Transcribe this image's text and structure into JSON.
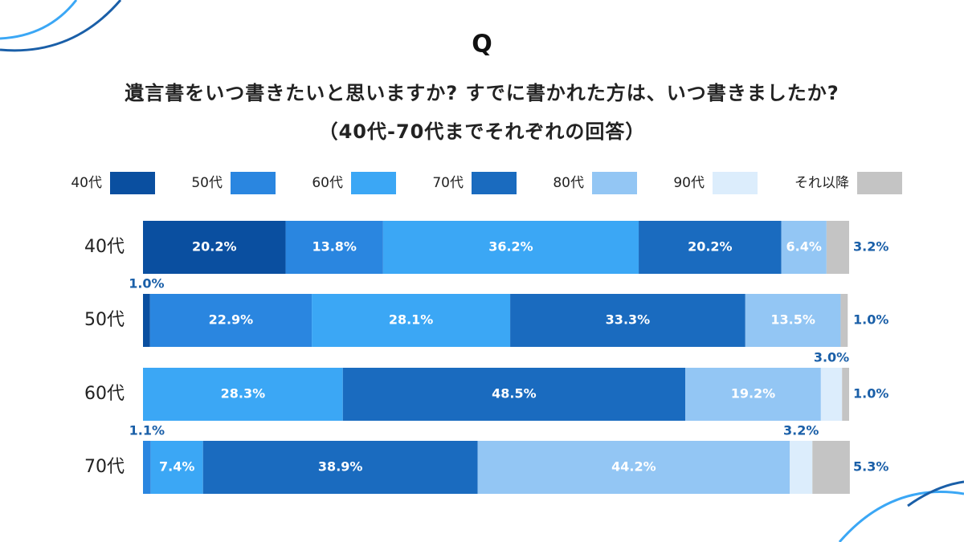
{
  "chart_data": {
    "type": "stacked-bar",
    "logo": "Q",
    "title": "遺言書をいつ書きたいと思いますか? すでに書かれた方は、いつ書きましたか?",
    "subtitle": "（40代-70代までそれぞれの回答）",
    "categories": [
      "40代",
      "50代",
      "60代",
      "70代"
    ],
    "xlim": [
      0,
      100
    ],
    "series": [
      {
        "name": "40代",
        "color": "#0a4fa0",
        "values": [
          20.2,
          1.0,
          null,
          null
        ],
        "value_labels": [
          "20.2%",
          "1.0%",
          null,
          null
        ]
      },
      {
        "name": "50代",
        "color": "#2a86e0",
        "values": [
          13.8,
          22.9,
          null,
          1.1
        ],
        "value_labels": [
          "13.8%",
          "22.9%",
          null,
          "1.1%"
        ]
      },
      {
        "name": "60代",
        "color": "#3ba7f5",
        "values": [
          36.2,
          28.1,
          28.3,
          7.4
        ],
        "value_labels": [
          "36.2%",
          "28.1%",
          "28.3%",
          "7.4%"
        ]
      },
      {
        "name": "70代",
        "color": "#1a6bbf",
        "values": [
          20.2,
          33.3,
          48.5,
          38.9
        ],
        "value_labels": [
          "20.2%",
          "33.3%",
          "48.5%",
          "38.9%"
        ]
      },
      {
        "name": "80代",
        "color": "#93c6f4",
        "values": [
          6.4,
          13.5,
          19.2,
          44.2
        ],
        "value_labels": [
          "6.4%",
          "13.5%",
          "19.2%",
          "44.2%"
        ]
      },
      {
        "name": "90代",
        "color": "#dcedfc",
        "values": [
          null,
          null,
          3.0,
          3.2
        ],
        "value_labels": [
          null,
          null,
          "3.0%",
          "3.2%"
        ]
      },
      {
        "name": "それ以降",
        "color": "#c4c4c4",
        "values": [
          3.2,
          1.0,
          1.0,
          5.3
        ],
        "value_labels": [
          "3.2%",
          "1.0%",
          "1.0%",
          "5.3%"
        ]
      }
    ]
  }
}
